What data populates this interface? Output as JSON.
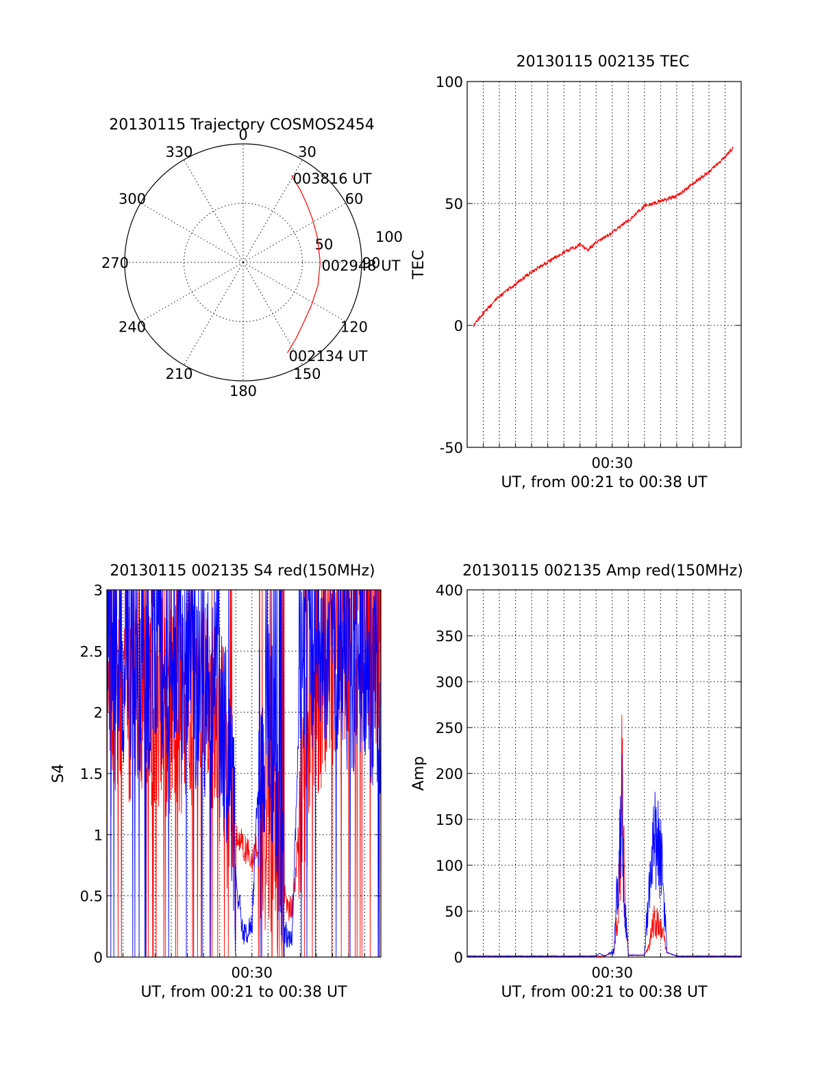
{
  "colors": {
    "red": "#ff0000",
    "blue": "#0000ff",
    "axis": "#000000"
  },
  "chart_data": [
    {
      "id": "trajectory",
      "type": "polar",
      "title": "20130115 Trajectory COSMOS2454",
      "azimuth_labels": [
        "0",
        "30",
        "60",
        "90",
        "120",
        "150",
        "180",
        "210",
        "240",
        "270",
        "300",
        "330"
      ],
      "radial_labels": [
        "50",
        "100"
      ],
      "radial_max": 100,
      "grid": true,
      "track": {
        "color": "#ff0000",
        "points": [
          [
            154,
            85
          ],
          [
            145,
            78
          ],
          [
            135,
            72
          ],
          [
            122,
            68
          ],
          [
            107,
            66
          ],
          [
            90,
            65
          ],
          [
            72,
            66
          ],
          [
            58,
            69
          ],
          [
            47,
            73
          ],
          [
            38,
            78
          ],
          [
            29,
            84
          ]
        ]
      },
      "annotations": [
        {
          "text": "003816 UT",
          "az": 29,
          "r": 84
        },
        {
          "text": "002948 UT",
          "az": 90,
          "r": 65
        },
        {
          "text": "002134 UT",
          "az": 154,
          "r": 85
        }
      ]
    },
    {
      "id": "tec",
      "type": "line",
      "title": "20130115 002135 TEC",
      "ylabel": "TEC",
      "xlabel": "UT, from 00:21 to 00:38 UT",
      "ylim": [
        -50,
        100
      ],
      "yticks": [
        "100",
        "50",
        "0",
        "-50"
      ],
      "xticklabels": [
        "00:30"
      ],
      "grid": true,
      "series": [
        {
          "color": "#ff0000",
          "x": [
            0.4,
            1.0,
            2.0,
            3.0,
            4.0,
            5.0,
            6.0,
            7.0,
            7.5,
            8.0,
            9.0,
            10.0,
            11.0,
            12.0,
            13.0,
            14.0,
            15.0,
            16.0,
            16.5
          ],
          "y": [
            0,
            5,
            12,
            17,
            22,
            26,
            30,
            33,
            31,
            34,
            38,
            43,
            49,
            51,
            53,
            58,
            63,
            69,
            73
          ]
        }
      ]
    },
    {
      "id": "s4",
      "type": "line",
      "title": "20130115 002135 S4 red(150MHz)",
      "ylabel": "S4",
      "xlabel": "UT, from 00:21 to 00:38 UT",
      "ylim": [
        0,
        3
      ],
      "yticks": [
        "3",
        "2.5",
        "2",
        "1.5",
        "1",
        "0.5",
        "0"
      ],
      "xticklabels": [
        "00:30"
      ],
      "grid": true,
      "series": [
        {
          "color": "#ff0000",
          "x": [
            0,
            2,
            4,
            6,
            7,
            7.5,
            8,
            8.5,
            9,
            9.5,
            10,
            10.5,
            11,
            11.5,
            12,
            12.5,
            13,
            14,
            15,
            16,
            17
          ],
          "y": [
            2.0,
            2.2,
            2.0,
            2.2,
            1.8,
            1.3,
            1.0,
            0.9,
            0.8,
            1.0,
            1.1,
            0.9,
            0.5,
            0.35,
            1.2,
            1.6,
            2.2,
            2.4,
            2.6,
            2.8,
            2.5
          ]
        },
        {
          "color": "#0000ff",
          "x": [
            0,
            2,
            4,
            6,
            7,
            7.5,
            8,
            8.5,
            9,
            9.5,
            10,
            10.5,
            11,
            11.5,
            12,
            12.5,
            13,
            14,
            15,
            16,
            17
          ],
          "y": [
            2.5,
            2.4,
            2.3,
            2.2,
            2.0,
            1.8,
            0.6,
            0.2,
            0.25,
            1.8,
            2.0,
            1.5,
            0.2,
            0.15,
            2.3,
            2.5,
            2.6,
            2.5,
            2.4,
            2.4,
            2.2
          ]
        }
      ]
    },
    {
      "id": "amp",
      "type": "line",
      "title": "20130115 002135 Amp red(150MHz)",
      "ylabel": "Amp",
      "xlabel": "UT, from 00:21 to 00:38 UT",
      "ylim": [
        0,
        400
      ],
      "yticks": [
        "400",
        "350",
        "300",
        "250",
        "200",
        "150",
        "100",
        "50",
        "0"
      ],
      "xticklabels": [
        "00:30"
      ],
      "grid": true,
      "series": [
        {
          "color": "#ff0000",
          "x": [
            0,
            8.5,
            9.1,
            9.3,
            9.5,
            9.6,
            9.8,
            10.0,
            11.0,
            11.3,
            11.6,
            11.8,
            12.1,
            12.4,
            13,
            17
          ],
          "y": [
            1,
            1,
            5,
            60,
            150,
            285,
            80,
            2,
            2,
            20,
            60,
            55,
            45,
            5,
            1,
            1
          ]
        },
        {
          "color": "#0000ff",
          "x": [
            0,
            8.0,
            8.2,
            8.6,
            9.1,
            9.3,
            9.5,
            9.6,
            9.8,
            10.0,
            11.0,
            11.3,
            11.6,
            11.8,
            12.1,
            12.4,
            13,
            17
          ],
          "y": [
            1,
            1,
            4,
            1,
            10,
            100,
            180,
            230,
            80,
            2,
            2,
            120,
            175,
            195,
            140,
            5,
            1,
            1
          ]
        }
      ]
    }
  ]
}
